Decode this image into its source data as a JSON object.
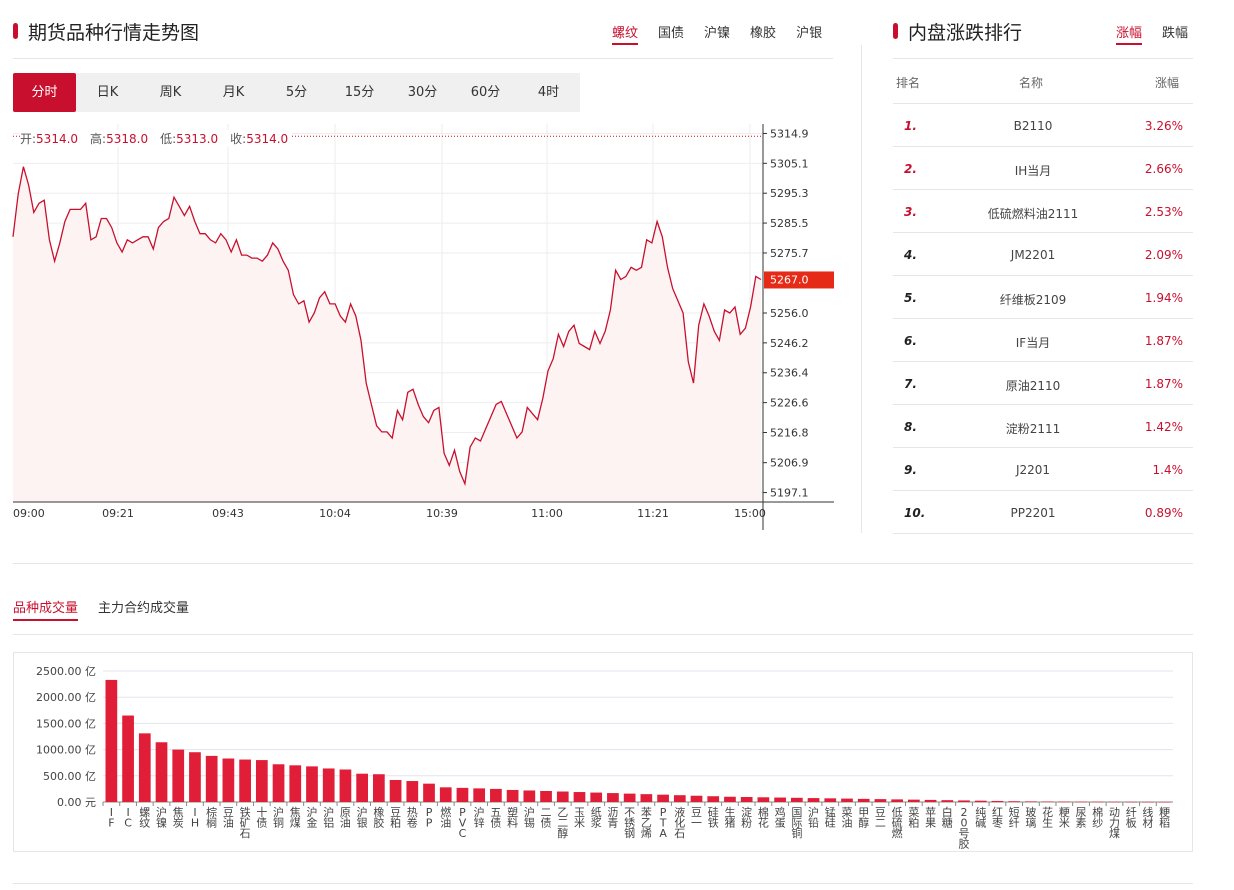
{
  "trend": {
    "title": "期货品种行情走势图",
    "tabs": [
      "螺纹",
      "国债",
      "沪镍",
      "橡胶",
      "沪银"
    ],
    "active_tab": 0,
    "periods": [
      "分时",
      "日K",
      "周K",
      "月K",
      "5分",
      "15分",
      "30分",
      "60分",
      "4时"
    ],
    "active_period": 0,
    "ohlc": {
      "open_label": "开:",
      "open": "5314.0",
      "high_label": "高:",
      "high": "5318.0",
      "low_label": "低:",
      "low": "5313.0",
      "close_label": "收:",
      "close": "5314.0"
    },
    "current_price": "5267.0"
  },
  "ranking": {
    "title": "内盘涨跌排行",
    "tabs": [
      "涨幅",
      "跌幅"
    ],
    "active_tab": 0,
    "headers": {
      "rank": "排名",
      "name": "名称",
      "change": "涨幅"
    },
    "rows": [
      {
        "rank": "1.",
        "name": "B2110",
        "change": "3.26%"
      },
      {
        "rank": "2.",
        "name": "IH当月",
        "change": "2.66%"
      },
      {
        "rank": "3.",
        "name": "低硫燃料油2111",
        "change": "2.53%"
      },
      {
        "rank": "4.",
        "name": "JM2201",
        "change": "2.09%"
      },
      {
        "rank": "5.",
        "name": "纤维板2109",
        "change": "1.94%"
      },
      {
        "rank": "6.",
        "name": "IF当月",
        "change": "1.87%"
      },
      {
        "rank": "7.",
        "name": "原油2110",
        "change": "1.87%"
      },
      {
        "rank": "8.",
        "name": "淀粉2111",
        "change": "1.42%"
      },
      {
        "rank": "9.",
        "name": "J2201",
        "change": "1.4%"
      },
      {
        "rank": "10.",
        "name": "PP2201",
        "change": "0.89%"
      }
    ]
  },
  "volume": {
    "tabs": [
      "品种成交量",
      "主力合约成交量"
    ],
    "active_tab": 0
  },
  "colors": {
    "accent": "#c8102e",
    "line": "#c8102e"
  },
  "chart_data": [
    {
      "type": "line",
      "x_ticks": [
        "09:00",
        "09:21",
        "09:43",
        "10:04",
        "10:39",
        "11:00",
        "11:21",
        "15:00"
      ],
      "y_ticks": [
        5314.9,
        5305.1,
        5295.3,
        5285.5,
        5275.7,
        5256.0,
        5246.2,
        5236.4,
        5226.6,
        5216.8,
        5206.9,
        5197.1
      ],
      "ylim": [
        5194,
        5318
      ],
      "last_value": 5267.0,
      "reference_line": 5314.0,
      "values": [
        5281,
        5295,
        5304,
        5298,
        5289,
        5292,
        5293,
        5280,
        5273,
        5279,
        5286,
        5290,
        5290,
        5290,
        5292,
        5280,
        5281,
        5287,
        5287,
        5284,
        5279,
        5276,
        5280,
        5279,
        5280,
        5281,
        5281,
        5277,
        5284,
        5286,
        5287,
        5294,
        5291,
        5288,
        5291,
        5286,
        5282,
        5282,
        5280,
        5279,
        5282,
        5280,
        5276,
        5280,
        5275,
        5275,
        5274,
        5274,
        5273,
        5275,
        5279,
        5277,
        5273,
        5270,
        5262,
        5259,
        5260,
        5253,
        5256,
        5261,
        5263,
        5259,
        5259,
        5255,
        5253,
        5259,
        5255,
        5247,
        5233,
        5226,
        5219,
        5217,
        5217,
        5215,
        5224,
        5221,
        5230,
        5231,
        5226,
        5222,
        5220,
        5224,
        5225,
        5210,
        5206,
        5211,
        5204,
        5200,
        5212,
        5215,
        5214,
        5218,
        5222,
        5226,
        5227,
        5223,
        5219,
        5215,
        5217,
        5225,
        5223,
        5221,
        5228,
        5237,
        5241,
        5249,
        5245,
        5250,
        5252,
        5246,
        5245,
        5244,
        5250,
        5246,
        5250,
        5257,
        5270,
        5267,
        5268,
        5271,
        5270,
        5271,
        5280,
        5279,
        5286,
        5281,
        5271,
        5264,
        5260,
        5256,
        5240,
        5233,
        5252,
        5259,
        5255,
        5250,
        5247,
        5257,
        5256,
        5258,
        5249,
        5251,
        5258,
        5268,
        5267
      ]
    },
    {
      "type": "bar",
      "yunit": "亿",
      "y_ticks": [
        "2500.00 亿",
        "2000.00 亿",
        "1500.00 亿",
        "1000.00 亿",
        "500.00 亿",
        "0.00 元"
      ],
      "ylim": [
        0,
        2500
      ],
      "categories": [
        "IF",
        "IC",
        "螺纹",
        "沪镍",
        "焦炭",
        "IH",
        "棕榈",
        "豆油",
        "铁矿石",
        "十债",
        "沪铜",
        "焦煤",
        "沪金",
        "沪铝",
        "原油",
        "沪银",
        "橡胶",
        "豆粕",
        "热卷",
        "PP",
        "燃油",
        "PVC",
        "沪锌",
        "五债",
        "塑料",
        "沪锡",
        "二债",
        "乙二醇",
        "玉米",
        "纸浆",
        "沥青",
        "不锈钢",
        "苯乙烯",
        "PTA",
        "液化石",
        "豆一",
        "硅铁",
        "生猪",
        "淀粉",
        "棉花",
        "鸡蛋",
        "国际铜",
        "沪铅",
        "锰硅",
        "菜油",
        "甲醇",
        "豆二",
        "低硫燃",
        "菜粕",
        "苹果",
        "白糖",
        "20号胶",
        "纯碱",
        "红枣",
        "短纤",
        "玻璃",
        "花生",
        "粳米",
        "尿素",
        "棉纱",
        "动力煤",
        "纤板",
        "线材",
        "粳稻"
      ],
      "values": [
        2330,
        1650,
        1310,
        1140,
        1000,
        950,
        880,
        830,
        810,
        800,
        720,
        700,
        680,
        640,
        620,
        540,
        530,
        420,
        400,
        350,
        280,
        270,
        260,
        250,
        230,
        220,
        210,
        200,
        190,
        180,
        170,
        160,
        150,
        140,
        130,
        120,
        110,
        100,
        95,
        90,
        85,
        80,
        75,
        70,
        65,
        60,
        55,
        50,
        45,
        40,
        35,
        30,
        25,
        20,
        15,
        12,
        10,
        8,
        6,
        5,
        4,
        3,
        2,
        1
      ]
    }
  ]
}
